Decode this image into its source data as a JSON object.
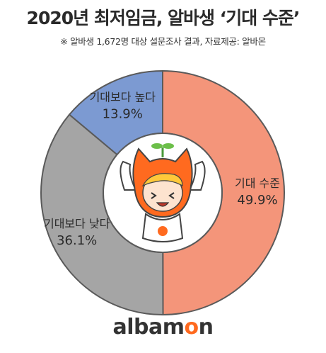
{
  "title": "2020년 최저임금, 알바생 ‘기대 수준’",
  "subtitle": "※ 알바생 1,672명 대상 설문조사 결과,  자료제공: 알바몬",
  "chart_data": {
    "type": "pie",
    "title": "2020년 최저임금, 알바생 ‘기대 수준’",
    "slices": [
      {
        "label": "기대 수준",
        "value": 49.9,
        "value_label": "49.9%",
        "color": "#f4957a"
      },
      {
        "label": "기대보다 낮다",
        "value": 36.1,
        "value_label": "36.1%",
        "color": "#a5a5a5"
      },
      {
        "label": "기대보다 높다",
        "value": 13.9,
        "value_label": "13.9%",
        "color": "#7c9ad2"
      }
    ],
    "donut": true,
    "legend": "none"
  },
  "colors": {
    "segment_border": "#5a5a5a",
    "mascot_orange": "#ff6a1f",
    "brand_accent": "#ff6a1f"
  },
  "logo": {
    "text": "albamon",
    "icon": "albamon-mascot-icon"
  }
}
